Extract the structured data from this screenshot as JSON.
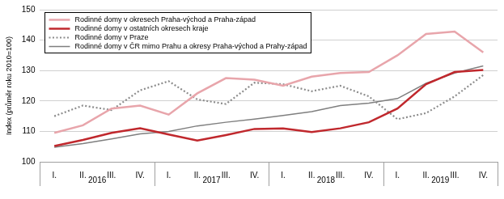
{
  "chart_data": {
    "type": "line",
    "y_label": "Index (průměr roku 2010=100)",
    "categories": [
      "I.",
      "II.",
      "III.",
      "IV.",
      "I.",
      "II.",
      "III.",
      "IV.",
      "I.",
      "II.",
      "III.",
      "IV.",
      "I.",
      "II.",
      "III.",
      "IV."
    ],
    "category_groups": [
      "2016",
      "2017",
      "2018",
      "2019"
    ],
    "series": [
      {
        "name": "Rodinné domy v okresech Praha-východ a Praha-západ",
        "color": "#e8a5ab",
        "line_style": "solid",
        "values": [
          109.5,
          112,
          117.5,
          118.5,
          115.5,
          122.5,
          127.5,
          127,
          125,
          128,
          129.2,
          129.5,
          135,
          142,
          142.8,
          136
        ]
      },
      {
        "name": "Rodinné domy v ostatních okresech kraje",
        "color": "#c0282d",
        "line_style": "solid",
        "values": [
          105.2,
          107.2,
          109.5,
          111,
          109,
          107,
          108.8,
          110.8,
          111,
          109.8,
          111,
          113,
          117.5,
          125.5,
          129.5,
          130.2
        ]
      },
      {
        "name": "Rodinné domy v Praze",
        "color": "#8c8c8c",
        "line_style": "dotted",
        "values": [
          115,
          118.5,
          117,
          123.5,
          126.5,
          120.5,
          119,
          126,
          125.5,
          123.2,
          125,
          121.5,
          114,
          116,
          121.5,
          128.5
        ]
      },
      {
        "name": "Rodinné domy v ČR mimo Prahu a okresy Praha-východ a Prahy-západ",
        "color": "#7f7f7f",
        "line_style": "solid",
        "values": [
          104.8,
          106,
          107.5,
          109.2,
          110,
          111.8,
          113,
          114,
          115.2,
          116.5,
          118.5,
          119.3,
          120.8,
          125.8,
          129.2,
          131.5
        ]
      }
    ],
    "ylim": [
      100,
      150
    ],
    "yticks": [
      100,
      110,
      120,
      130,
      140,
      150
    ],
    "grid": true,
    "legend": "top-left"
  }
}
